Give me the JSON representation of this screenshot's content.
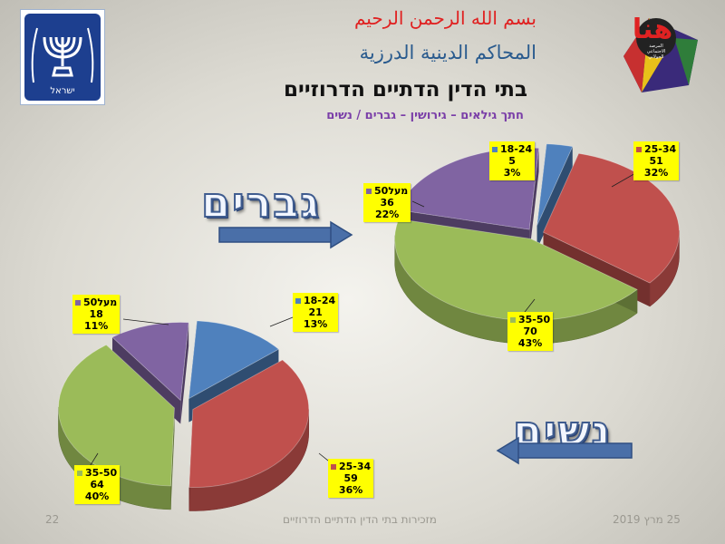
{
  "header": {
    "arabic_line1": "بسم الله الرحمن الرحيم",
    "arabic_line2": "المحاكم الدينية الدرزية",
    "title": "בתי הדין הדתיים הדרוזיים",
    "subtitle": "חתך גילאים – גירושין – גברים / נשים"
  },
  "logo": {
    "text": "هنا",
    "small_text": [
      "المرصد",
      "الاجتماعي",
      "الجولاني"
    ]
  },
  "emblem": {
    "caption": "ישראל"
  },
  "big_labels": {
    "men": "גברים",
    "women": "נשים"
  },
  "footer": {
    "page": "22",
    "center": "מזכירות בתי הדין הדתיים הדרוזיים",
    "date": "25 מרץ 2019"
  },
  "colors": {
    "blue": "#4f81bd",
    "red": "#c0504d",
    "green": "#9bbb59",
    "purple": "#8064a2",
    "label_bg": "#ffff00"
  },
  "chart_data": [
    {
      "type": "pie",
      "group": "גברים",
      "slices": [
        {
          "label": "18-24",
          "value": 5,
          "pct": "3%"
        },
        {
          "label": "25-34",
          "value": 51,
          "pct": "32%"
        },
        {
          "label": "35-50",
          "value": 70,
          "pct": "43%"
        },
        {
          "label": "מעל50",
          "value": 36,
          "pct": "22%"
        }
      ]
    },
    {
      "type": "pie",
      "group": "נשים",
      "slices": [
        {
          "label": "18-24",
          "value": 21,
          "pct": "13%"
        },
        {
          "label": "25-34",
          "value": 59,
          "pct": "36%"
        },
        {
          "label": "35-50",
          "value": 64,
          "pct": "40%"
        },
        {
          "label": "מעל50",
          "value": 18,
          "pct": "11%"
        }
      ]
    }
  ]
}
